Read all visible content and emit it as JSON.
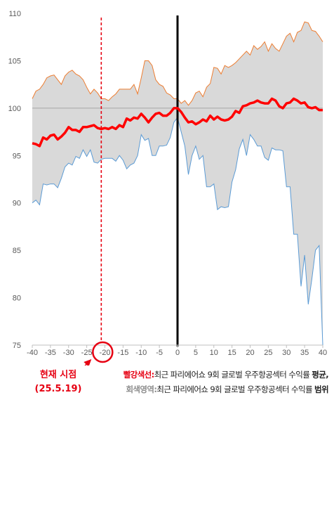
{
  "chart_data": {
    "type": "area",
    "x": [
      -40,
      -39,
      -38,
      -37,
      -36,
      -35,
      -34,
      -33,
      -32,
      -31,
      -30,
      -29,
      -28,
      -27,
      -26,
      -25,
      -24,
      -23,
      -22,
      -21,
      -20,
      -19,
      -18,
      -17,
      -16,
      -15,
      -14,
      -13,
      -12,
      -11,
      -10,
      -9,
      -8,
      -7,
      -6,
      -5,
      -4,
      -3,
      -2,
      -1,
      0,
      1,
      2,
      3,
      4,
      5,
      6,
      7,
      8,
      9,
      10,
      11,
      12,
      13,
      14,
      15,
      16,
      17,
      18,
      19,
      20,
      21,
      22,
      23,
      24,
      25,
      26,
      27,
      28,
      29,
      30,
      31,
      32,
      33,
      34,
      35,
      36,
      37,
      38,
      39,
      40
    ],
    "series": [
      {
        "name": "",
        "role": "average",
        "color": "#ff0000",
        "values": [
          96.3,
          96.2,
          96.0,
          96.9,
          96.7,
          97.1,
          97.2,
          96.7,
          97.0,
          97.4,
          98.0,
          97.7,
          97.7,
          97.5,
          98.0,
          98.0,
          98.1,
          98.2,
          97.9,
          97.8,
          97.9,
          97.8,
          98.0,
          97.8,
          98.2,
          98.0,
          98.9,
          98.7,
          99.0,
          98.9,
          99.4,
          99.0,
          98.5,
          99.0,
          99.4,
          99.5,
          99.2,
          99.2,
          99.5,
          100.0,
          100.0,
          99.6,
          99.0,
          98.5,
          98.6,
          98.3,
          98.5,
          98.8,
          98.6,
          99.2,
          98.8,
          99.1,
          98.8,
          98.7,
          98.8,
          99.1,
          99.7,
          99.5,
          100.2,
          100.3,
          100.5,
          100.6,
          100.8,
          100.6,
          100.5,
          100.5,
          101.0,
          100.8,
          100.2,
          100.0,
          100.5,
          100.6,
          101.0,
          100.8,
          100.5,
          100.6,
          100.1,
          100.0,
          100.1,
          99.8,
          99.8
        ]
      },
      {
        "name": "",
        "role": "range-upper",
        "color": "#ed7d31",
        "values": [
          101.0,
          101.8,
          102.0,
          102.5,
          103.2,
          103.4,
          103.5,
          103.0,
          102.5,
          103.4,
          103.8,
          104.0,
          103.6,
          103.4,
          103.0,
          102.2,
          101.5,
          102.0,
          101.6,
          101.0,
          101.0,
          100.8,
          101.2,
          101.5,
          102.0,
          102.0,
          102.0,
          102.0,
          102.5,
          101.5,
          103.2,
          105.0,
          105.0,
          104.5,
          103.0,
          102.5,
          102.3,
          101.6,
          101.4,
          101.0,
          101.0,
          100.5,
          100.8,
          100.3,
          100.8,
          101.6,
          101.8,
          101.2,
          102.2,
          102.6,
          104.3,
          104.2,
          103.6,
          104.5,
          104.3,
          104.5,
          104.8,
          105.2,
          105.6,
          106.0,
          105.6,
          106.6,
          106.2,
          106.5,
          107.0,
          106.0,
          106.8,
          106.3,
          106.0,
          106.8,
          107.6,
          107.9,
          107.0,
          108.0,
          108.2,
          109.1,
          109.0,
          108.2,
          108.1,
          107.6,
          107.0
        ]
      },
      {
        "name": "",
        "role": "range-lower",
        "color": "#5b9bd5",
        "values": [
          90.0,
          90.3,
          89.8,
          92.0,
          91.9,
          92.0,
          92.0,
          91.6,
          92.6,
          93.8,
          94.2,
          94.0,
          94.9,
          94.7,
          95.6,
          94.9,
          95.6,
          94.3,
          94.2,
          94.6,
          94.7,
          94.7,
          94.7,
          94.4,
          95.0,
          94.5,
          93.6,
          94.0,
          94.2,
          95.0,
          97.2,
          96.6,
          96.8,
          95.0,
          95.0,
          96.0,
          96.0,
          96.1,
          96.9,
          98.5,
          99.0,
          97.5,
          96.0,
          93.0,
          95.0,
          96.0,
          94.6,
          95.0,
          91.7,
          91.7,
          92.0,
          89.3,
          89.6,
          89.5,
          89.6,
          92.2,
          93.5,
          95.7,
          96.7,
          95.0,
          97.2,
          96.7,
          96.0,
          96.0,
          94.8,
          94.5,
          95.8,
          95.6,
          95.6,
          95.5,
          91.7,
          91.7,
          86.7,
          86.7,
          81.2,
          84.5,
          79.3,
          82.0,
          85.0,
          85.5,
          75.0
        ]
      }
    ],
    "reference_line_y": 100,
    "event_line_x": 0,
    "current_marker_x": -21,
    "xlim": [
      -40,
      40
    ],
    "ylim": [
      75,
      110
    ],
    "xticks": [
      -40,
      -35,
      -30,
      -25,
      -20,
      -15,
      -10,
      -5,
      0,
      5,
      10,
      15,
      20,
      25,
      30,
      35,
      40
    ],
    "yticks": [
      75,
      80,
      85,
      90,
      95,
      100,
      105,
      110
    ],
    "xlabel": "",
    "ylabel": "",
    "grid": false,
    "colors": {
      "fill": "#d9d9d9",
      "reference": "#a6a6a6",
      "event_line": "#000000",
      "current_line": "#e60012",
      "text": "#595959"
    }
  },
  "annotations": {
    "current_label_line1": "현재 시점",
    "current_label_line2": "(25.5.19)",
    "marker_symbol": "arrow-and-circle"
  },
  "notes": [
    {
      "key": "빨강색선:",
      "key_color": "#e60012",
      "body": "최근 파리에어쇼 9회 글로벌 우주항공섹터 수익률 ",
      "emph": "평균,"
    },
    {
      "key": "회색영역:",
      "key_color": "#8c8c8c",
      "body": "최근 파리에어쇼 9회 글로벌 우주항공섹터 수익률 ",
      "emph": "범위"
    }
  ]
}
